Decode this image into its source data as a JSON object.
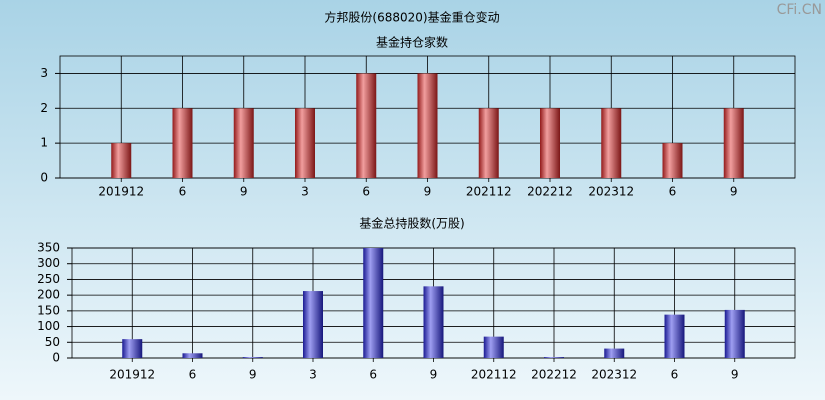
{
  "title": "方邦股份(688020)基金重仓变动",
  "watermark": "CFi.CN",
  "chart_data": [
    {
      "type": "bar",
      "title": "基金持仓家数",
      "color": "#e02828",
      "categories": [
        "201912",
        "6",
        "9",
        "3",
        "6",
        "9",
        "202112",
        "202212",
        "202312",
        "6",
        "9"
      ],
      "values": [
        1,
        2,
        2,
        2,
        3,
        3,
        2,
        2,
        2,
        1,
        2
      ],
      "ylim": [
        0,
        3.5
      ],
      "yticks": [
        0,
        1,
        2,
        3
      ],
      "grid": true
    },
    {
      "type": "bar",
      "title": "基金总持股数(万股)",
      "color": "#2828e0",
      "categories": [
        "201912",
        "6",
        "9",
        "3",
        "6",
        "9",
        "202112",
        "202212",
        "202312",
        "6",
        "9"
      ],
      "values": [
        60,
        15,
        3,
        213,
        350,
        228,
        68,
        3,
        30,
        138,
        153
      ],
      "ylim": [
        0,
        350
      ],
      "yticks": [
        0,
        50,
        100,
        150,
        200,
        250,
        300,
        350
      ],
      "grid": true
    }
  ]
}
